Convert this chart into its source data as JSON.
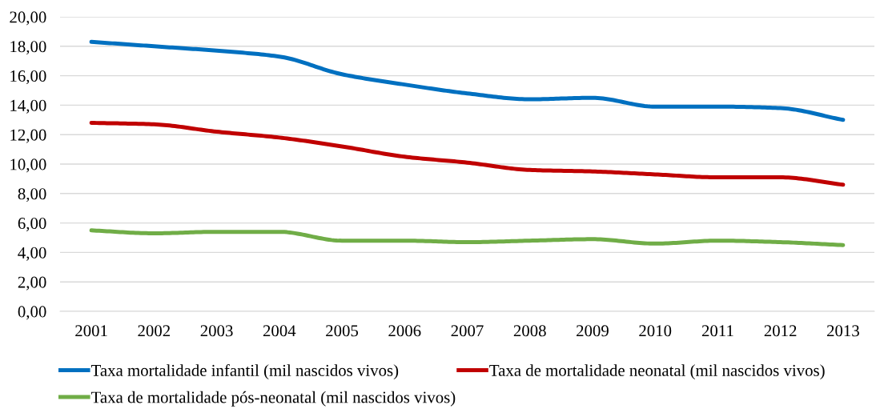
{
  "chart_data": {
    "type": "line",
    "categories": [
      "2001",
      "2002",
      "2003",
      "2004",
      "2005",
      "2006",
      "2007",
      "2008",
      "2009",
      "2010",
      "2011",
      "2012",
      "2013"
    ],
    "series": [
      {
        "name": "Taxa mortalidade infantil (mil nascidos vivos)",
        "color": "#0070c0",
        "values": [
          18.3,
          18.0,
          17.7,
          17.3,
          16.1,
          15.4,
          14.8,
          14.4,
          14.5,
          13.9,
          13.9,
          13.8,
          13.0
        ]
      },
      {
        "name": "Taxa de mortalidade neonatal (mil nascidos vivos)",
        "color": "#c00000",
        "values": [
          12.8,
          12.7,
          12.2,
          11.8,
          11.2,
          10.5,
          10.1,
          9.6,
          9.5,
          9.3,
          9.1,
          9.1,
          8.6
        ]
      },
      {
        "name": "Taxa de mortalidade pós-neonatal (mil nascidos vivos)",
        "color": "#70ad47",
        "values": [
          5.5,
          5.3,
          5.4,
          5.4,
          4.8,
          4.8,
          4.7,
          4.8,
          4.9,
          4.6,
          4.8,
          4.7,
          4.5
        ]
      }
    ],
    "ylim": [
      0,
      20
    ],
    "yticks": [
      {
        "value": 0,
        "label": "0,00"
      },
      {
        "value": 2,
        "label": "2,00"
      },
      {
        "value": 4,
        "label": "4,00"
      },
      {
        "value": 6,
        "label": "6,00"
      },
      {
        "value": 8,
        "label": "8,00"
      },
      {
        "value": 10,
        "label": "10,00"
      },
      {
        "value": 12,
        "label": "12,00"
      },
      {
        "value": 14,
        "label": "14,00"
      },
      {
        "value": 16,
        "label": "16,00"
      },
      {
        "value": 18,
        "label": "18,00"
      },
      {
        "value": 20,
        "label": "20,00"
      }
    ],
    "grid": "y",
    "legend": "bottom",
    "line_style": "solid",
    "marker": "none"
  }
}
